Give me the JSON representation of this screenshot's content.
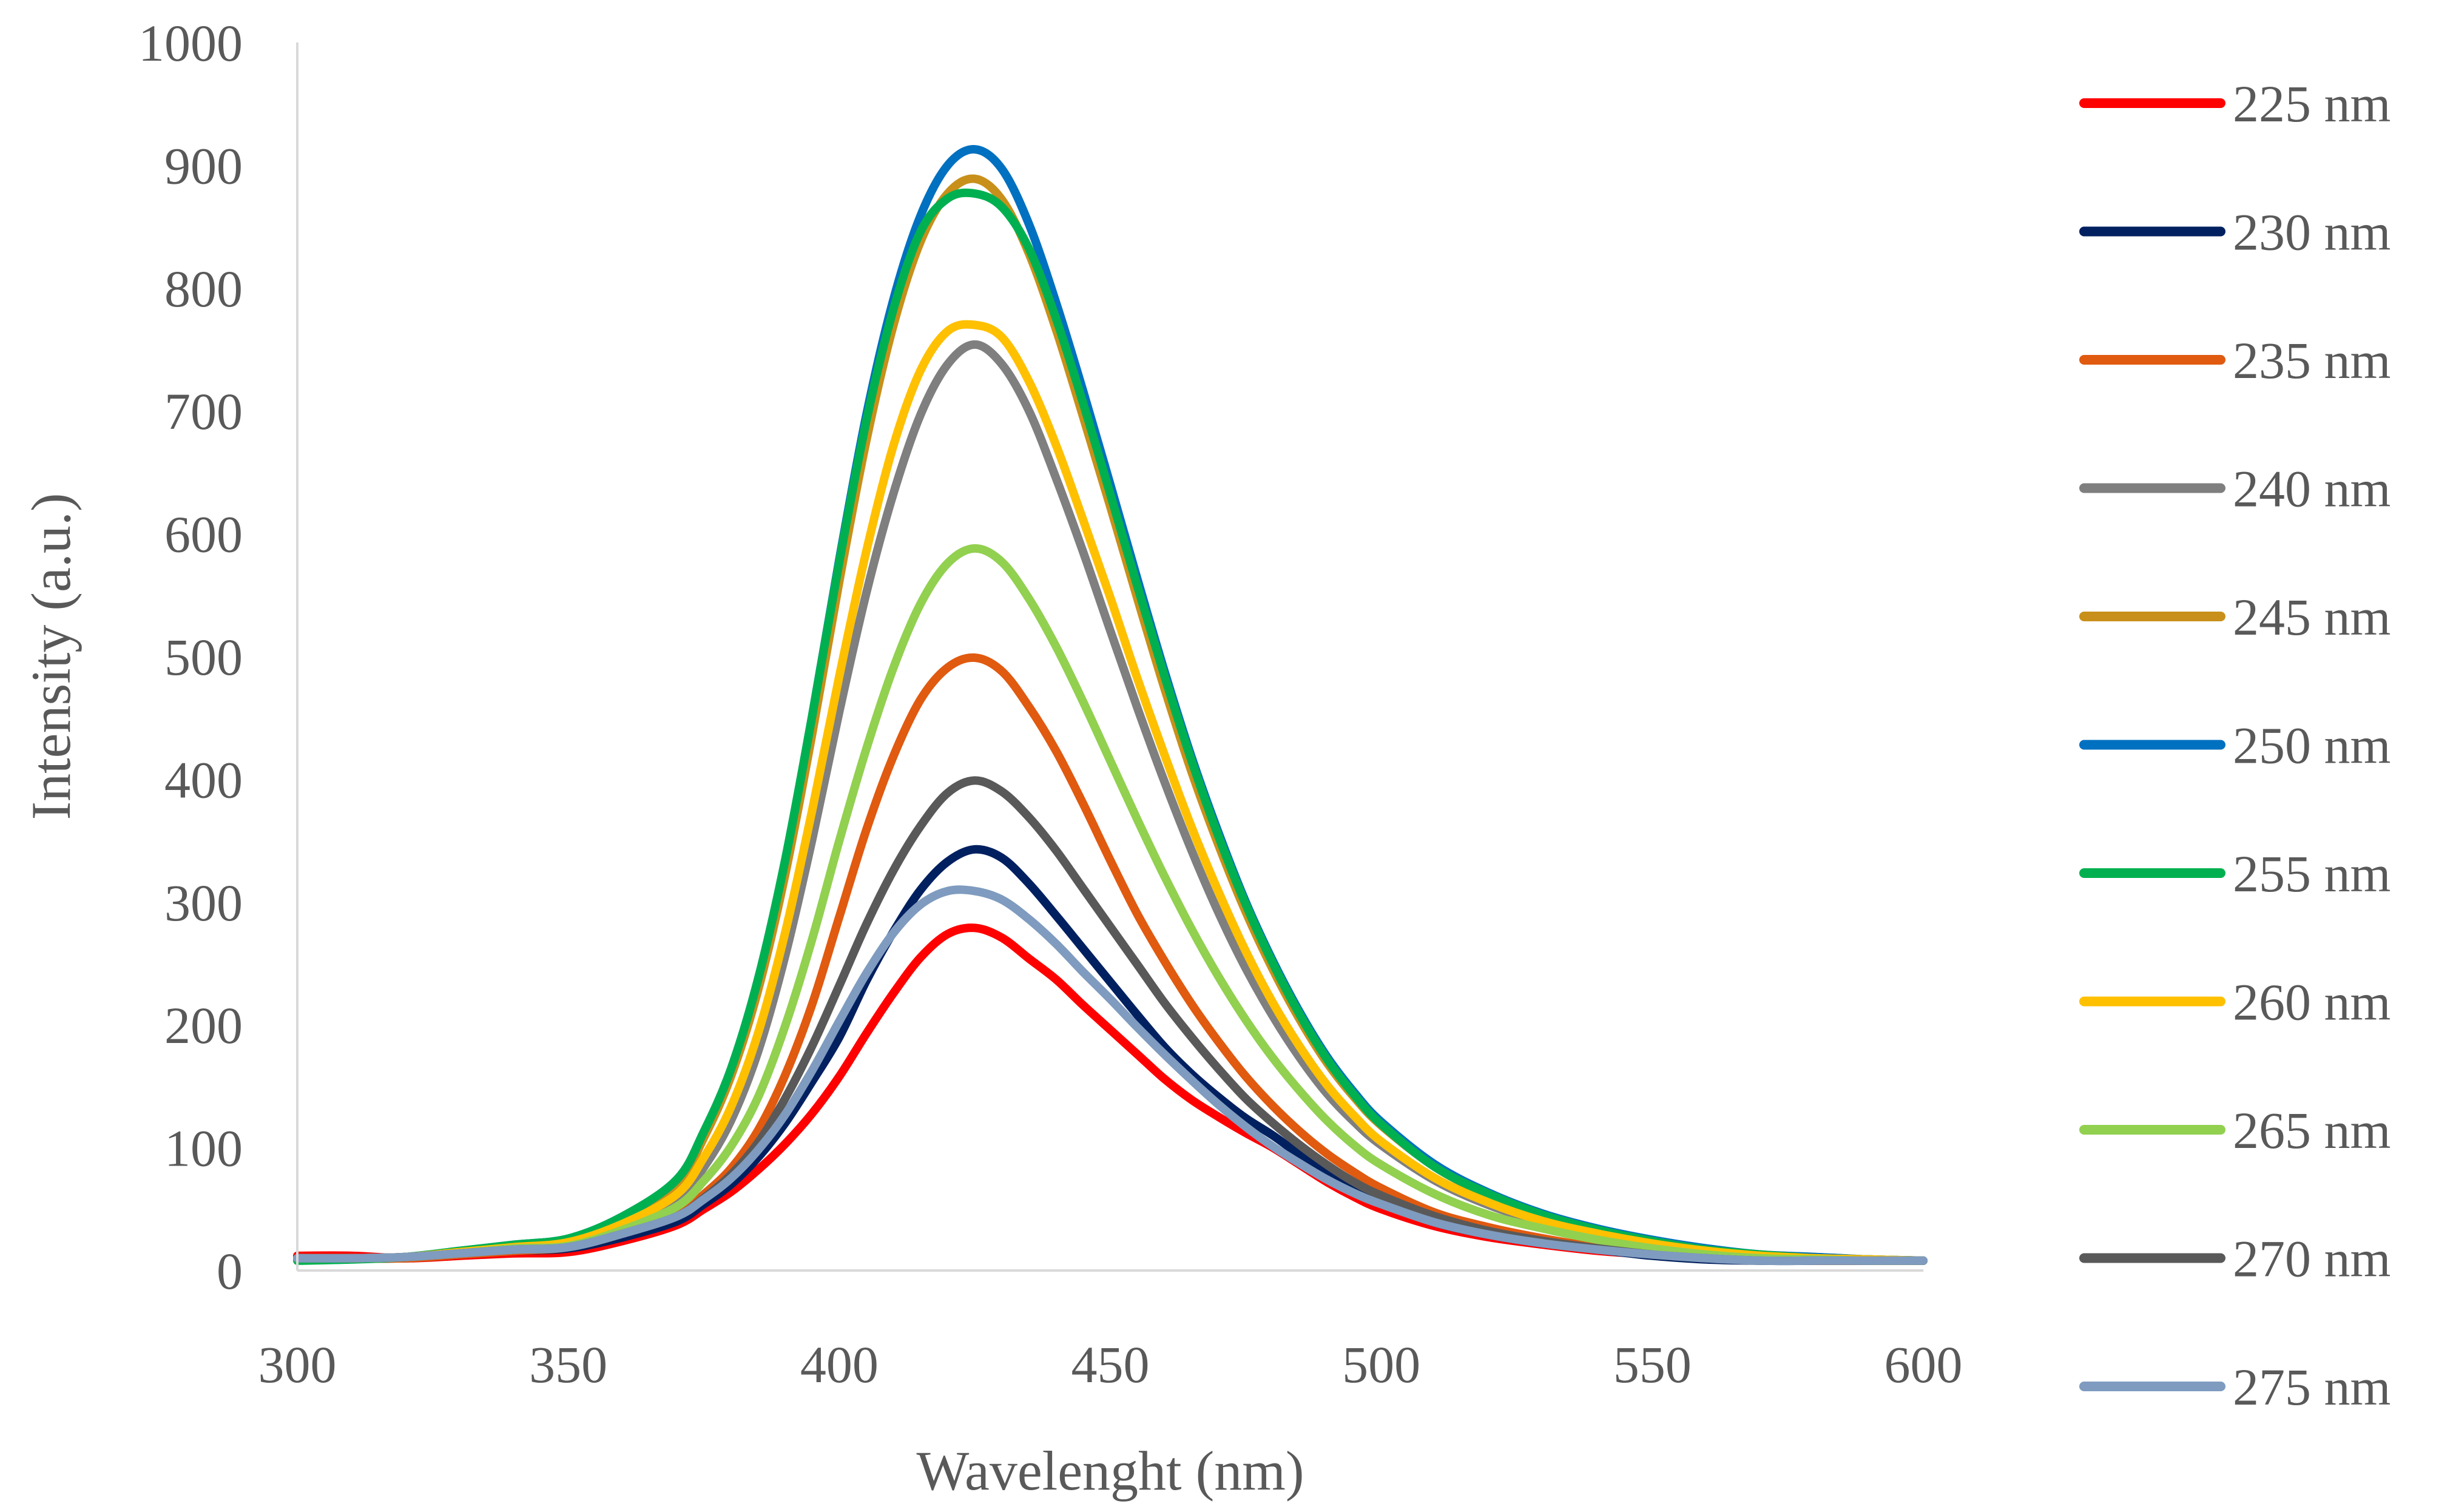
{
  "chart_data": {
    "type": "line",
    "title": "",
    "xlabel": "Wavelenght (nm)",
    "ylabel": "Intensity (a.u.)",
    "xlim": [
      300,
      600
    ],
    "ylim": [
      0,
      1000
    ],
    "x_ticks": [
      300,
      350,
      400,
      450,
      500,
      550,
      600
    ],
    "y_ticks": [
      0,
      100,
      200,
      300,
      400,
      500,
      600,
      700,
      800,
      900,
      1000
    ],
    "grid": false,
    "legend_position": "right",
    "x": [
      300,
      310,
      320,
      330,
      340,
      350,
      360,
      370,
      375,
      380,
      385,
      390,
      395,
      400,
      405,
      410,
      415,
      420,
      425,
      430,
      435,
      440,
      445,
      450,
      455,
      460,
      465,
      470,
      475,
      480,
      485,
      490,
      495,
      500,
      510,
      520,
      530,
      540,
      550,
      560,
      570,
      580,
      590,
      600
    ],
    "series": [
      {
        "name": "225 nm",
        "color": "#ff0000",
        "values": [
          12,
          12,
          10,
          12,
          14,
          15,
          24,
          37,
          50,
          64,
          82,
          103,
          128,
          158,
          193,
          226,
          255,
          274,
          279,
          271,
          254,
          237,
          216,
          196,
          176,
          156,
          139,
          125,
          112,
          100,
          86,
          72,
          60,
          50,
          36,
          27,
          21,
          16,
          13,
          10,
          9,
          8,
          8,
          8
        ]
      },
      {
        "name": "230 nm",
        "color": "#002060",
        "values": [
          10,
          10,
          10,
          13,
          16,
          18,
          27,
          40,
          54,
          70,
          92,
          120,
          154,
          190,
          236,
          276,
          310,
          333,
          343,
          336,
          315,
          289,
          262,
          235,
          208,
          182,
          160,
          141,
          124,
          110,
          94,
          79,
          66,
          55,
          39,
          29,
          22,
          17,
          12,
          9,
          8,
          8,
          8,
          8
        ]
      },
      {
        "name": "235 nm",
        "color": "#e05a10",
        "values": [
          10,
          10,
          10,
          13,
          16,
          19,
          30,
          45,
          62,
          83,
          114,
          159,
          217,
          288,
          359,
          419,
          465,
          491,
          499,
          488,
          459,
          423,
          380,
          334,
          290,
          252,
          217,
          186,
          158,
          134,
          113,
          95,
          80,
          67,
          47,
          35,
          26,
          19,
          14,
          11,
          9,
          8,
          8,
          8
        ]
      },
      {
        "name": "240 nm",
        "color": "#7f7f7f",
        "values": [
          10,
          10,
          11,
          15,
          19,
          22,
          36,
          58,
          84,
          122,
          178,
          256,
          351,
          455,
          552,
          633,
          697,
          738,
          754,
          738,
          700,
          645,
          585,
          521,
          458,
          398,
          342,
          291,
          246,
          207,
          173,
          144,
          121,
          102,
          73,
          53,
          39,
          29,
          21,
          15,
          11,
          10,
          9,
          8
        ]
      },
      {
        "name": "245 nm",
        "color": "#c8901a",
        "values": [
          10,
          10,
          11,
          15,
          20,
          24,
          41,
          70,
          108,
          158,
          228,
          322,
          437,
          561,
          676,
          770,
          838,
          877,
          889,
          872,
          828,
          766,
          695,
          622,
          547,
          474,
          406,
          346,
          292,
          245,
          204,
          169,
          141,
          118,
          84,
          61,
          45,
          33,
          24,
          17,
          13,
          11,
          9,
          8
        ]
      },
      {
        "name": "250 nm",
        "color": "#0070c0",
        "values": [
          10,
          10,
          11,
          16,
          21,
          26,
          44,
          74,
          113,
          164,
          237,
          334,
          452,
          579,
          697,
          791,
          859,
          900,
          913,
          897,
          852,
          788,
          716,
          640,
          563,
          488,
          418,
          356,
          300,
          252,
          210,
          174,
          145,
          121,
          86,
          63,
          46,
          34,
          25,
          18,
          13,
          11,
          9,
          8
        ]
      },
      {
        "name": "255 nm",
        "color": "#00b050",
        "values": [
          8,
          9,
          11,
          16,
          21,
          26,
          44,
          74,
          113,
          164,
          237,
          334,
          452,
          577,
          692,
          783,
          846,
          873,
          877,
          866,
          832,
          775,
          706,
          632,
          557,
          484,
          415,
          353,
          298,
          250,
          208,
          172,
          143,
          119,
          84,
          62,
          45,
          33,
          24,
          17,
          13,
          10,
          9,
          8
        ]
      },
      {
        "name": "260 nm",
        "color": "#ffc000",
        "values": [
          10,
          10,
          11,
          15,
          19,
          23,
          38,
          62,
          92,
          133,
          193,
          275,
          375,
          484,
          586,
          672,
          733,
          765,
          770,
          760,
          724,
          672,
          611,
          548,
          482,
          420,
          361,
          308,
          260,
          218,
          182,
          151,
          126,
          105,
          75,
          55,
          40,
          30,
          22,
          16,
          12,
          10,
          9,
          8
        ]
      },
      {
        "name": "265 nm",
        "color": "#92d050",
        "values": [
          10,
          10,
          11,
          14,
          18,
          20,
          33,
          52,
          73,
          101,
          141,
          199,
          270,
          350,
          425,
          491,
          543,
          576,
          588,
          577,
          547,
          508,
          463,
          415,
          367,
          321,
          278,
          239,
          204,
          173,
          146,
          122,
          102,
          86,
          62,
          45,
          34,
          25,
          18,
          13,
          10,
          9,
          8,
          8
        ]
      },
      {
        "name": "270 nm",
        "color": "#595959",
        "values": [
          10,
          10,
          11,
          14,
          17,
          19,
          30,
          44,
          59,
          78,
          104,
          140,
          183,
          232,
          282,
          326,
          362,
          389,
          399,
          390,
          369,
          342,
          311,
          280,
          249,
          218,
          190,
          164,
          140,
          120,
          102,
          86,
          72,
          61,
          44,
          32,
          24,
          18,
          13,
          10,
          8,
          8,
          8,
          8
        ]
      },
      {
        "name": "275 nm",
        "color": "#7f9bbf",
        "values": [
          10,
          10,
          11,
          14,
          17,
          19,
          30,
          44,
          58,
          75,
          98,
          127,
          163,
          203,
          242,
          275,
          298,
          309,
          309,
          302,
          286,
          266,
          243,
          221,
          198,
          176,
          155,
          135,
          117,
          101,
          87,
          74,
          63,
          54,
          39,
          29,
          22,
          17,
          13,
          10,
          8,
          8,
          8,
          8
        ]
      }
    ]
  }
}
